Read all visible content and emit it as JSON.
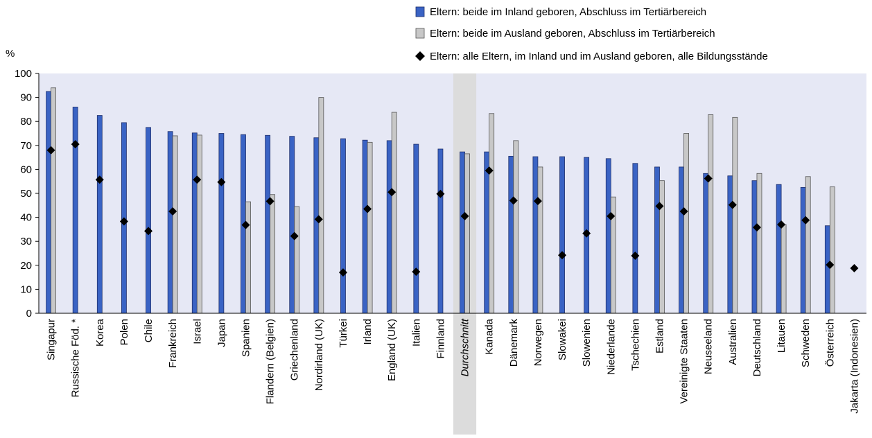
{
  "chart_data": {
    "type": "bar",
    "ylabel": "%",
    "ylim": [
      0,
      100
    ],
    "yticks": [
      0,
      10,
      20,
      30,
      40,
      50,
      60,
      70,
      80,
      90,
      100
    ],
    "grid": false,
    "legend_position": "top-right",
    "highlight_category": "Durchschnitt",
    "colors": {
      "plot_bg": "#e6e8f5",
      "highlight_bg": "#dcdcdc",
      "bar_inland": "#3a63c4",
      "bar_inland_stroke": "#1f2f6b",
      "bar_ausland": "#c8c8c8",
      "bar_ausland_stroke": "#555555",
      "marker": "#000000"
    },
    "categories": [
      "Singapur",
      "Russische Föd. *",
      "Korea",
      "Polen",
      "Chile",
      "Frankreich",
      "Israel",
      "Japan",
      "Spanien",
      "Flandern (Belgien)",
      "Griechenland",
      "Nordirland (UK)",
      "Türkei",
      "Irland",
      "England (UK)",
      "Italien",
      "Finnland",
      "Durchschnitt",
      "Kanada",
      "Dänemark",
      "Norwegen",
      "Slowakei",
      "Slowenien",
      "Niederlande",
      "Tschechien",
      "Estland",
      "Vereinigte Staaten",
      "Neuseeland",
      "Australien",
      "Deutschland",
      "Litauen",
      "Schweden",
      "Österreich",
      "Jakarta (Indonesien)"
    ],
    "series": [
      {
        "name": "Eltern: beide im Inland geboren, Abschluss im Tertiärbereich",
        "type": "bar",
        "values": [
          92.5,
          86,
          82.5,
          79.5,
          77.5,
          75.8,
          75.2,
          75,
          74.5,
          74.2,
          73.8,
          73.2,
          72.8,
          72.2,
          72,
          70.5,
          68.5,
          67.3,
          67.3,
          65.5,
          65.3,
          65.3,
          65,
          64.5,
          62.5,
          61,
          61,
          58.3,
          57.3,
          55.3,
          53.7,
          52.5,
          36.5,
          null
        ]
      },
      {
        "name": "Eltern: beide im Ausland geboren, Abschluss im Tertiärbereich",
        "type": "bar",
        "values": [
          94,
          null,
          null,
          null,
          null,
          74,
          74.3,
          null,
          46.5,
          49.5,
          44.5,
          90,
          null,
          71.3,
          83.8,
          null,
          null,
          66.5,
          83.3,
          72,
          61,
          null,
          null,
          48.5,
          null,
          55.3,
          75,
          82.8,
          81.7,
          58.3,
          37,
          57,
          52.7,
          null
        ]
      },
      {
        "name": "Eltern: alle Eltern, im Inland und im Ausland geboren, alle Bildungsstände",
        "type": "marker",
        "values": [
          68,
          70.5,
          55.7,
          38.3,
          34.3,
          42.5,
          55.7,
          54.7,
          36.8,
          46.7,
          32.2,
          39.2,
          17,
          43.5,
          50.5,
          17.3,
          49.8,
          40.5,
          59.5,
          47,
          46.8,
          24.2,
          33.3,
          40.5,
          24,
          44.7,
          42.5,
          56.2,
          45.2,
          35.8,
          37,
          38.8,
          20.2,
          18.8
        ]
      }
    ]
  }
}
